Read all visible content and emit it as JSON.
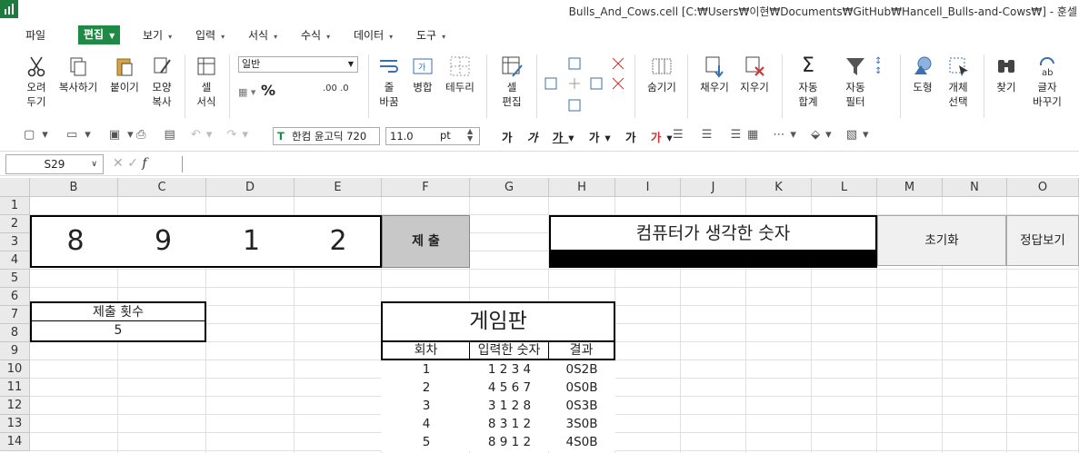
{
  "title": "Bulls_And_Cows.cell [C:₩Users₩이현₩Documents₩GitHub₩Hancell_Bulls-and-Cows₩] - 훈셀",
  "menu": [
    "파일",
    "편집",
    "보기",
    "입력",
    "서식",
    "수식",
    "데이터",
    "도구"
  ],
  "ribbon": {
    "cut": "오려\n두기",
    "copy": "복사하기",
    "paste": "붙이기",
    "format_painter": "모양\n복사",
    "cell_format": "셀\n서식",
    "number_format": "일반",
    "wrap": "줄\n바꿈",
    "merge": "병합",
    "border": "테두리",
    "cell_edit": "셀\n편집",
    "hide": "숨기기",
    "fill": "채우기",
    "clear": "지우기",
    "autosum": "자동\n합계",
    "autofilter": "자동\n필터",
    "shape": "도형",
    "select_obj": "개체\n선택",
    "find": "찾기",
    "replace": "글자\n바꾸기"
  },
  "font": {
    "name": "한컴 윤고딕 720",
    "size": "11.0",
    "unit": "pt"
  },
  "namebox": "S29",
  "columns": [
    "B",
    "C",
    "D",
    "E",
    "F",
    "G",
    "H",
    "I",
    "J",
    "K",
    "L",
    "M",
    "N",
    "O"
  ],
  "rows": [
    "1",
    "2",
    "3",
    "4",
    "5",
    "6",
    "7",
    "8",
    "9",
    "10",
    "11",
    "12",
    "13",
    "14"
  ],
  "input_digits": [
    "8",
    "9",
    "1",
    "2"
  ],
  "submit_label": "제 출",
  "computer_label": "컴퓨터가 생각한 숫자",
  "reset_label": "초기화",
  "answer_label": "정답보기",
  "count_label": "제출 횟수",
  "count_value": "5",
  "board": {
    "title": "게임판",
    "headers": [
      "회차",
      "입력한 숫자",
      "결과"
    ],
    "rows": [
      {
        "round": "1",
        "number": "1 2 3 4",
        "result": "0S2B"
      },
      {
        "round": "2",
        "number": "4 5 6 7",
        "result": "0S0B"
      },
      {
        "round": "3",
        "number": "3 1 2 8",
        "result": "0S3B"
      },
      {
        "round": "4",
        "number": "8 3 1 2",
        "result": "3S0B"
      },
      {
        "round": "5",
        "number": "8 9 1 2",
        "result": "4S0B"
      }
    ]
  },
  "colors": {
    "accent": "#1f8a45",
    "submit_bg": "#c8c8c8",
    "button_bg": "#f0f0f0"
  }
}
